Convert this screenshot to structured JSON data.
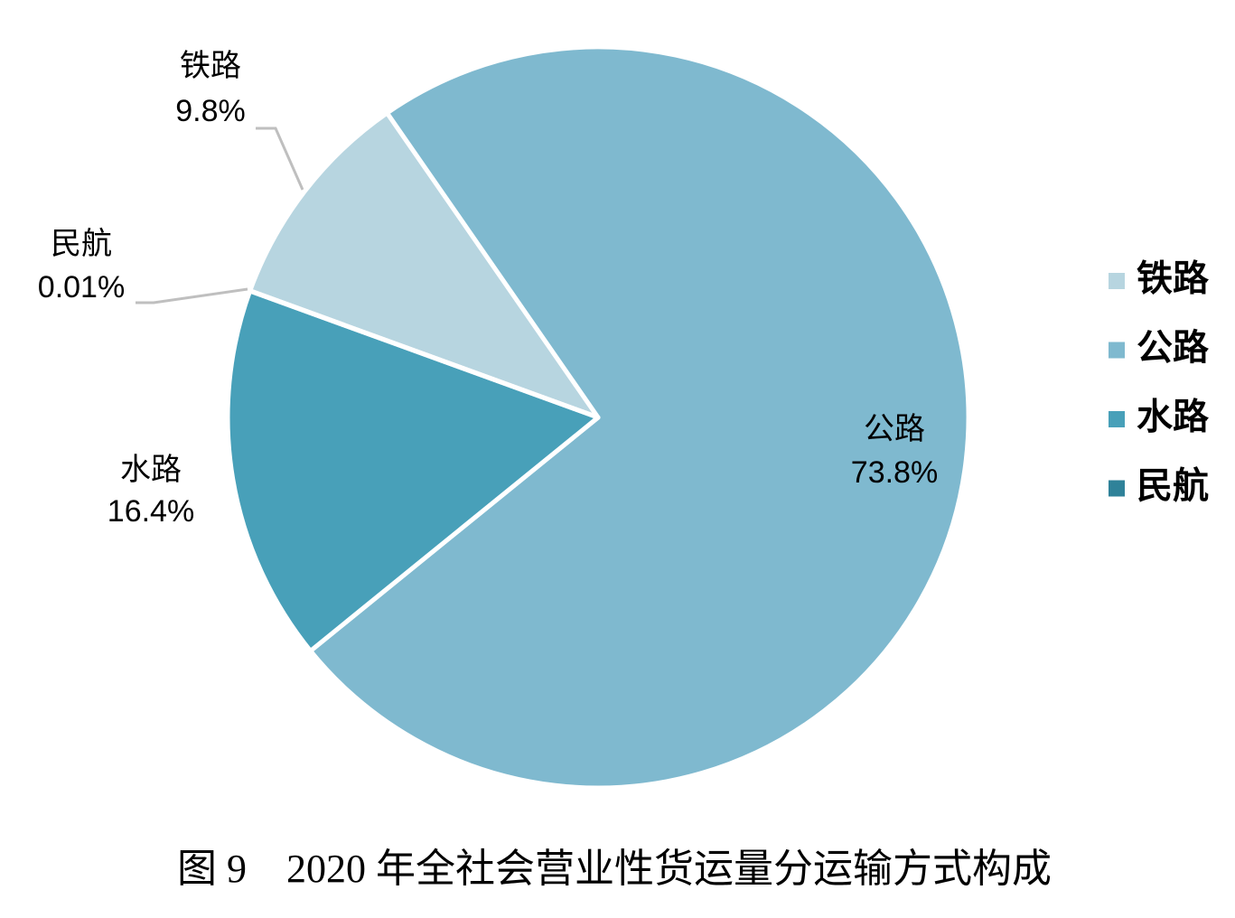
{
  "chart_data": {
    "type": "pie",
    "title": "图 9　2020 年全社会营业性货运量分运输方式构成",
    "categories": [
      "铁路",
      "公路",
      "水路",
      "民航"
    ],
    "values": [
      9.8,
      73.8,
      16.4,
      0.01
    ],
    "value_labels": [
      "9.8%",
      "73.8%",
      "16.4%",
      "0.01%"
    ],
    "colors": [
      "#b7d5e0",
      "#7fb9cf",
      "#48a0b9",
      "#2f8299"
    ],
    "legend": "right"
  }
}
